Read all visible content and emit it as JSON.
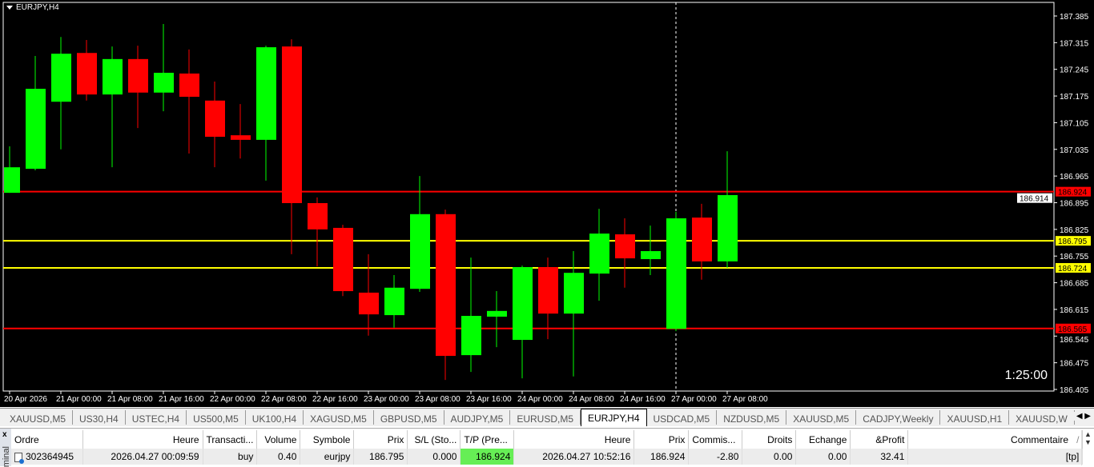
{
  "chart_data": {
    "type": "candlestick",
    "title": "EURJPY,H4",
    "ylim": [
      186.405,
      187.385
    ],
    "y_ticks": [
      "187.385",
      "187.315",
      "187.245",
      "187.175",
      "187.105",
      "187.035",
      "186.965",
      "186.895",
      "186.825",
      "186.755",
      "186.685",
      "186.615",
      "186.545",
      "186.475",
      "186.405"
    ],
    "x_tick_labels": [
      "20 Apr 2026",
      "21 Apr 00:00",
      "21 Apr 08:00",
      "21 Apr 16:00",
      "22 Apr 00:00",
      "22 Apr 08:00",
      "22 Apr 16:00",
      "23 Apr 00:00",
      "23 Apr 08:00",
      "23 Apr 16:00",
      "24 Apr 00:00",
      "24 Apr 08:00",
      "24 Apr 16:00",
      "27 Apr 00:00",
      "27 Apr 08:00"
    ],
    "candles": [
      {
        "o": 186.921,
        "h": 187.043,
        "l": 186.921,
        "c": 186.988
      },
      {
        "o": 186.984,
        "h": 187.28,
        "l": 186.98,
        "c": 187.194
      },
      {
        "o": 187.16,
        "h": 187.33,
        "l": 187.035,
        "c": 187.286
      },
      {
        "o": 187.288,
        "h": 187.322,
        "l": 187.163,
        "c": 187.179
      },
      {
        "o": 187.179,
        "h": 187.305,
        "l": 186.988,
        "c": 187.272
      },
      {
        "o": 187.272,
        "h": 187.307,
        "l": 187.091,
        "c": 187.184
      },
      {
        "o": 187.184,
        "h": 187.364,
        "l": 187.135,
        "c": 187.236
      },
      {
        "o": 187.234,
        "h": 187.297,
        "l": 187.024,
        "c": 187.173
      },
      {
        "o": 187.163,
        "h": 187.213,
        "l": 186.988,
        "c": 187.068
      },
      {
        "o": 187.072,
        "h": 187.154,
        "l": 187.011,
        "c": 187.06
      },
      {
        "o": 187.06,
        "h": 187.307,
        "l": 186.953,
        "c": 187.303
      },
      {
        "o": 187.305,
        "h": 187.324,
        "l": 186.76,
        "c": 186.894
      },
      {
        "o": 186.894,
        "h": 186.909,
        "l": 186.728,
        "c": 186.825
      },
      {
        "o": 186.829,
        "h": 186.837,
        "l": 186.65,
        "c": 186.663
      },
      {
        "o": 186.659,
        "h": 186.76,
        "l": 186.546,
        "c": 186.602
      },
      {
        "o": 186.6,
        "h": 186.705,
        "l": 186.567,
        "c": 186.672
      },
      {
        "o": 186.669,
        "h": 186.965,
        "l": 186.661,
        "c": 186.865
      },
      {
        "o": 186.865,
        "h": 186.877,
        "l": 186.43,
        "c": 186.493
      },
      {
        "o": 186.495,
        "h": 186.751,
        "l": 186.451,
        "c": 186.598
      },
      {
        "o": 186.596,
        "h": 186.663,
        "l": 186.516,
        "c": 186.611
      },
      {
        "o": 186.535,
        "h": 186.73,
        "l": 186.434,
        "c": 186.726
      },
      {
        "o": 186.726,
        "h": 186.751,
        "l": 186.537,
        "c": 186.604
      },
      {
        "o": 186.604,
        "h": 186.768,
        "l": 186.439,
        "c": 186.711
      },
      {
        "o": 186.709,
        "h": 186.879,
        "l": 186.638,
        "c": 186.814
      },
      {
        "o": 186.812,
        "h": 186.854,
        "l": 186.672,
        "c": 186.749
      },
      {
        "o": 186.747,
        "h": 186.835,
        "l": 186.705,
        "c": 186.768
      },
      {
        "o": 186.564,
        "h": 186.871,
        "l": 186.558,
        "c": 186.854
      },
      {
        "o": 186.856,
        "h": 186.892,
        "l": 186.693,
        "c": 186.741
      },
      {
        "o": 186.741,
        "h": 187.03,
        "l": 186.724,
        "c": 186.915
      }
    ],
    "levels": [
      {
        "price": 186.924,
        "label": "186.924",
        "color": "#ff0000"
      },
      {
        "price": 186.795,
        "label": "186.795",
        "color": "#ffff00"
      },
      {
        "price": 186.724,
        "label": "186.724",
        "color": "#ffff00"
      },
      {
        "price": 186.565,
        "label": "186.565",
        "color": "#ff0000"
      }
    ],
    "bid_label": "186.914",
    "vertical_marker_candle": 26,
    "colors": {
      "bull": "#00ff00",
      "bear": "#ff0000",
      "background": "#000000",
      "axis": "#ffffff"
    }
  },
  "timer": "1:25:00",
  "tabs": [
    "XAUUSD,M5",
    "US30,H4",
    "USTEC,H4",
    "US500,M5",
    "UK100,H4",
    "XAGUSD,M5",
    "GBPUSD,M5",
    "AUDJPY,M5",
    "EURUSD,M5",
    "EURJPY,H4",
    "USDCAD,M5",
    "NZDUSD,M5",
    "XAUUSD,M5",
    "CADJPY,Weekly",
    "XAUUSD,H1",
    "XAUUSD,W"
  ],
  "active_tab": "EURJPY,H4",
  "terminal": {
    "close": "x",
    "side_label": "minal",
    "columns": [
      "Ordre",
      "Heure",
      "Transacti...",
      "Volume",
      "Symbole",
      "Prix",
      "S/L (Sto...",
      "T/P (Pre...",
      "Heure",
      "Prix",
      "Commis...",
      "Droits",
      "Echange",
      "&Profit",
      "Commentaire"
    ],
    "rows": [
      [
        "302364945",
        "2026.04.27 00:09:59",
        "buy",
        "0.40",
        "eurjpy",
        "186.795",
        "0.000",
        "186.924",
        "2026.04.27 10:52:16",
        "186.924",
        "-2.80",
        "0.00",
        "0.00",
        "32.41",
        "[tp]"
      ]
    ],
    "sort_indicator": "/"
  }
}
